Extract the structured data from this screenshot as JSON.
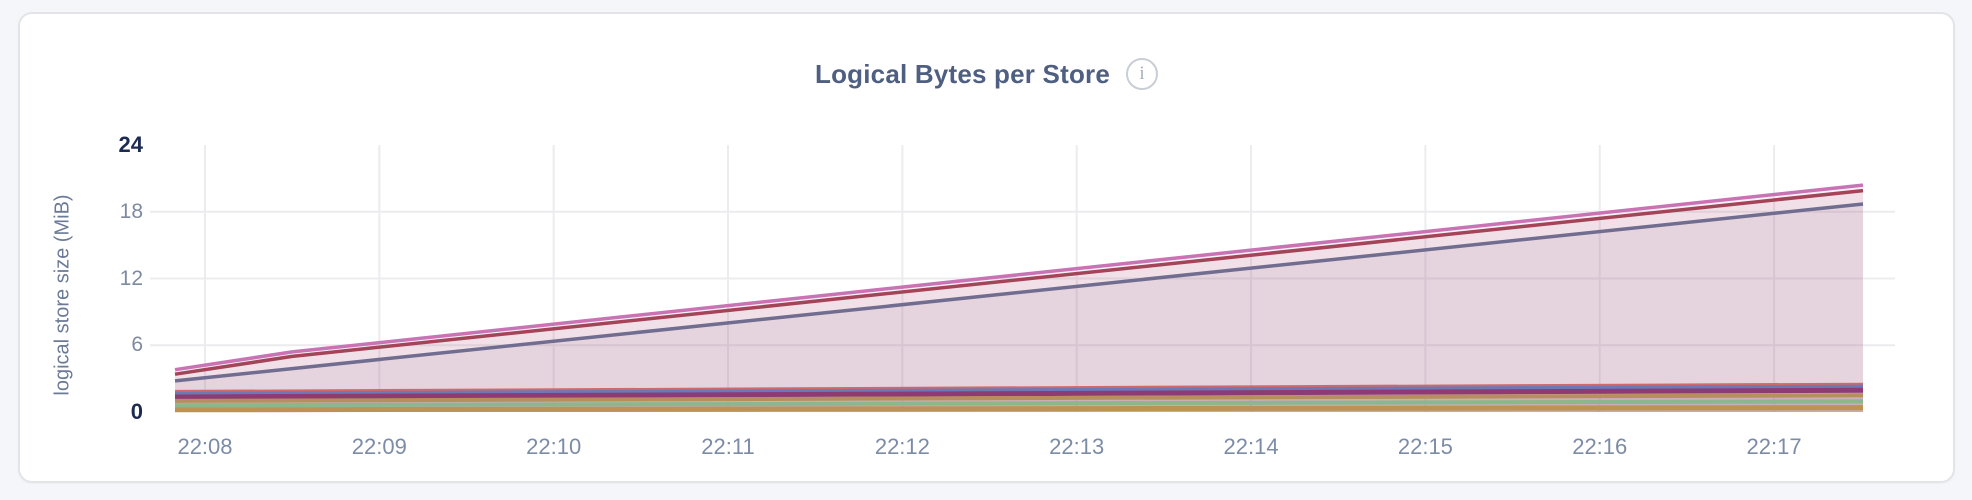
{
  "header": {
    "title": "Logical Bytes per Store",
    "info_icon_glyph": "i"
  },
  "palette": {
    "page_bg": "#F5F6FA",
    "card_bg": "#FFFFFF",
    "card_border": "#E3E4E8",
    "title_text": "#4E5F82",
    "tick_text": "#7C8CA6",
    "tick_text_strong": "#1C2B50",
    "axis_label_text": "#6B7A96",
    "grid": "#ECECEF",
    "info_icon": "#C9CDD5"
  },
  "chart_data": {
    "type": "area",
    "title": "Logical Bytes per Store",
    "xlabel": "",
    "ylabel": "logical store size (MiB)",
    "ylim": [
      0,
      24
    ],
    "yticks": [
      0,
      6,
      12,
      18,
      24
    ],
    "yticks_emphasized": [
      0,
      24
    ],
    "xticks": [
      "22:08",
      "22:09",
      "22:10",
      "22:11",
      "22:12",
      "22:13",
      "22:14",
      "22:15",
      "22:16",
      "22:17"
    ],
    "x_unit": "minutes relative to the 22:08 tick",
    "x_start": -0.172,
    "x_end": 9.51,
    "grid": "on",
    "legend": "none",
    "fill_opacity": 0.1,
    "series": [
      {
        "name": "series-slate",
        "color": "#716D90",
        "width": 3.5,
        "x": [
          -0.172,
          0.5,
          9.51
        ],
        "values": [
          2.8,
          3.9,
          18.7
        ]
      },
      {
        "name": "series-maroon",
        "color": "#A34458",
        "width": 3.5,
        "x": [
          -0.172,
          0.5,
          9.51
        ],
        "values": [
          3.4,
          5.0,
          19.9
        ]
      },
      {
        "name": "series-pink",
        "color": "#C973B4",
        "width": 3.5,
        "x": [
          -0.172,
          0.5,
          9.51
        ],
        "values": [
          3.8,
          5.4,
          20.4
        ]
      },
      {
        "name": "series-salmon",
        "color": "#D0696B",
        "width": 3.0,
        "x": [
          -0.172,
          9.51
        ],
        "values": [
          1.85,
          2.5
        ]
      },
      {
        "name": "series-blue",
        "color": "#6C79B7",
        "width": 3.5,
        "x": [
          -0.172,
          9.51
        ],
        "values": [
          1.65,
          2.3
        ]
      },
      {
        "name": "series-magenta",
        "color": "#8E3B74",
        "width": 5.0,
        "x": [
          -0.172,
          9.51
        ],
        "values": [
          1.35,
          1.95
        ]
      },
      {
        "name": "series-tan",
        "color": "#B68F5C",
        "width": 4.0,
        "x": [
          -0.172,
          9.51
        ],
        "values": [
          1.0,
          1.5
        ]
      },
      {
        "name": "series-green",
        "color": "#8CB68C",
        "width": 4.0,
        "x": [
          -0.172,
          9.51
        ],
        "values": [
          0.6,
          0.95
        ]
      },
      {
        "name": "series-gold",
        "color": "#BD9355",
        "width": 5.0,
        "x": [
          -0.172,
          9.51
        ],
        "values": [
          0.2,
          0.4
        ]
      }
    ]
  }
}
